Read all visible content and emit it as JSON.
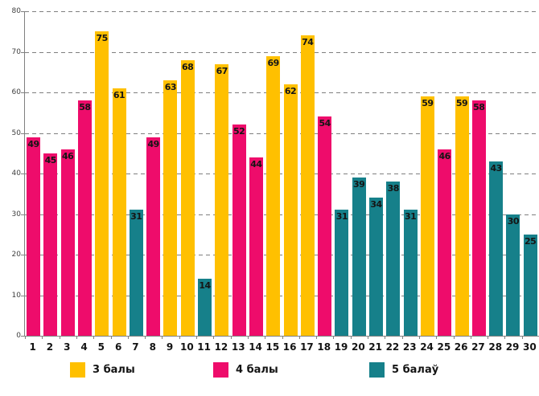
{
  "chart_data": {
    "type": "bar",
    "title": "",
    "xlabel": "",
    "ylabel": "",
    "ylim": [
      0,
      80
    ],
    "yticks": [
      0,
      10,
      20,
      30,
      40,
      50,
      60,
      70,
      80
    ],
    "grid": "horizontal-dashed",
    "legend_position": "bottom",
    "legend": [
      {
        "label": "3 балы",
        "color": "#FFC000"
      },
      {
        "label": "4 балы",
        "color": "#EE0C6B"
      },
      {
        "label": "5 балаў",
        "color": "#16808A"
      }
    ],
    "categories": [
      "1",
      "2",
      "3",
      "4",
      "5",
      "6",
      "7",
      "8",
      "9",
      "10",
      "11",
      "12",
      "13",
      "14",
      "15",
      "16",
      "17",
      "18",
      "19",
      "20",
      "21",
      "22",
      "23",
      "24",
      "25",
      "26",
      "27",
      "28",
      "29",
      "30"
    ],
    "values": [
      49,
      45,
      46,
      58,
      75,
      61,
      31,
      49,
      63,
      68,
      14,
      67,
      52,
      44,
      69,
      62,
      74,
      54,
      31,
      39,
      34,
      38,
      31,
      59,
      46,
      59,
      58,
      43,
      30,
      25
    ],
    "bars": [
      {
        "category": "1",
        "value": 49,
        "group": "4 балы"
      },
      {
        "category": "2",
        "value": 45,
        "group": "4 балы"
      },
      {
        "category": "3",
        "value": 46,
        "group": "4 балы"
      },
      {
        "category": "4",
        "value": 58,
        "group": "4 балы"
      },
      {
        "category": "5",
        "value": 75,
        "group": "3 балы"
      },
      {
        "category": "6",
        "value": 61,
        "group": "3 балы"
      },
      {
        "category": "7",
        "value": 31,
        "group": "5 балаў"
      },
      {
        "category": "8",
        "value": 49,
        "group": "4 балы"
      },
      {
        "category": "9",
        "value": 63,
        "group": "3 балы"
      },
      {
        "category": "10",
        "value": 68,
        "group": "3 балы"
      },
      {
        "category": "11",
        "value": 14,
        "group": "5 балаў"
      },
      {
        "category": "12",
        "value": 67,
        "group": "3 балы"
      },
      {
        "category": "13",
        "value": 52,
        "group": "4 балы"
      },
      {
        "category": "14",
        "value": 44,
        "group": "4 балы"
      },
      {
        "category": "15",
        "value": 69,
        "group": "3 балы"
      },
      {
        "category": "16",
        "value": 62,
        "group": "3 балы"
      },
      {
        "category": "17",
        "value": 74,
        "group": "3 балы"
      },
      {
        "category": "18",
        "value": 54,
        "group": "4 балы"
      },
      {
        "category": "19",
        "value": 31,
        "group": "5 балаў"
      },
      {
        "category": "20",
        "value": 39,
        "group": "5 балаў"
      },
      {
        "category": "21",
        "value": 34,
        "group": "5 балаў"
      },
      {
        "category": "22",
        "value": 38,
        "group": "5 балаў"
      },
      {
        "category": "23",
        "value": 31,
        "group": "5 балаў"
      },
      {
        "category": "24",
        "value": 59,
        "group": "3 балы"
      },
      {
        "category": "25",
        "value": 46,
        "group": "4 балы"
      },
      {
        "category": "26",
        "value": 59,
        "group": "3 балы"
      },
      {
        "category": "27",
        "value": 58,
        "group": "4 балы"
      },
      {
        "category": "28",
        "value": 43,
        "group": "5 балаў"
      },
      {
        "category": "29",
        "value": 30,
        "group": "5 балаў"
      },
      {
        "category": "30",
        "value": 25,
        "group": "5 балаў"
      }
    ],
    "colors": {
      "axis": "#808080",
      "gridline": "#7f7f7f",
      "value_label": "#151515"
    }
  }
}
